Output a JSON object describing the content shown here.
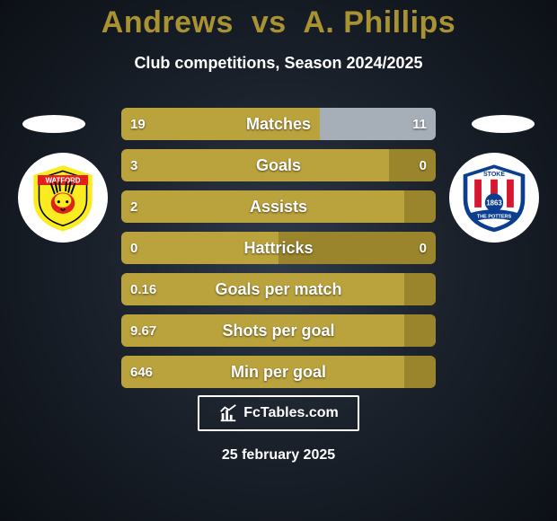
{
  "title": {
    "p1": "Andrews",
    "vs": "vs",
    "p2": "A. Phillips",
    "color": "#a99231"
  },
  "subtitle": "Club competitions, Season 2024/2025",
  "date": "25 february 2025",
  "watermark_text": "FcTables.com",
  "colors": {
    "fill_light": "#baa23d",
    "fill_dark": "#9a842c",
    "player2_fill": "#a6aeb8"
  },
  "stats": [
    {
      "label": "Matches",
      "left_val": "19",
      "right_val": "11",
      "left_pct": 63,
      "right_pct": 37
    },
    {
      "label": "Goals",
      "left_val": "3",
      "right_val": "0",
      "left_pct": 85,
      "right_pct": 15
    },
    {
      "label": "Assists",
      "left_val": "2",
      "right_val": "",
      "left_pct": 90,
      "right_pct": 10
    },
    {
      "label": "Hattricks",
      "left_val": "0",
      "right_val": "0",
      "left_pct": 50,
      "right_pct": 50
    },
    {
      "label": "Goals per match",
      "left_val": "0.16",
      "right_val": "",
      "left_pct": 90,
      "right_pct": 10
    },
    {
      "label": "Shots per goal",
      "left_val": "9.67",
      "right_val": "",
      "left_pct": 90,
      "right_pct": 10
    },
    {
      "label": "Min per goal",
      "left_val": "646",
      "right_val": "",
      "left_pct": 90,
      "right_pct": 10
    }
  ],
  "badges": {
    "left": {
      "name": "watford-badge",
      "banner_text": "WATFORD",
      "primary": "#fbec21",
      "secondary": "#e1201b",
      "accent": "#000000"
    },
    "right": {
      "name": "stoke-badge",
      "banner_text": "STOKE",
      "sub_text": "THE POTTERS",
      "year": "1863",
      "primary": "#d7172f",
      "secondary": "#ffffff",
      "accent": "#0b3e8f"
    }
  }
}
